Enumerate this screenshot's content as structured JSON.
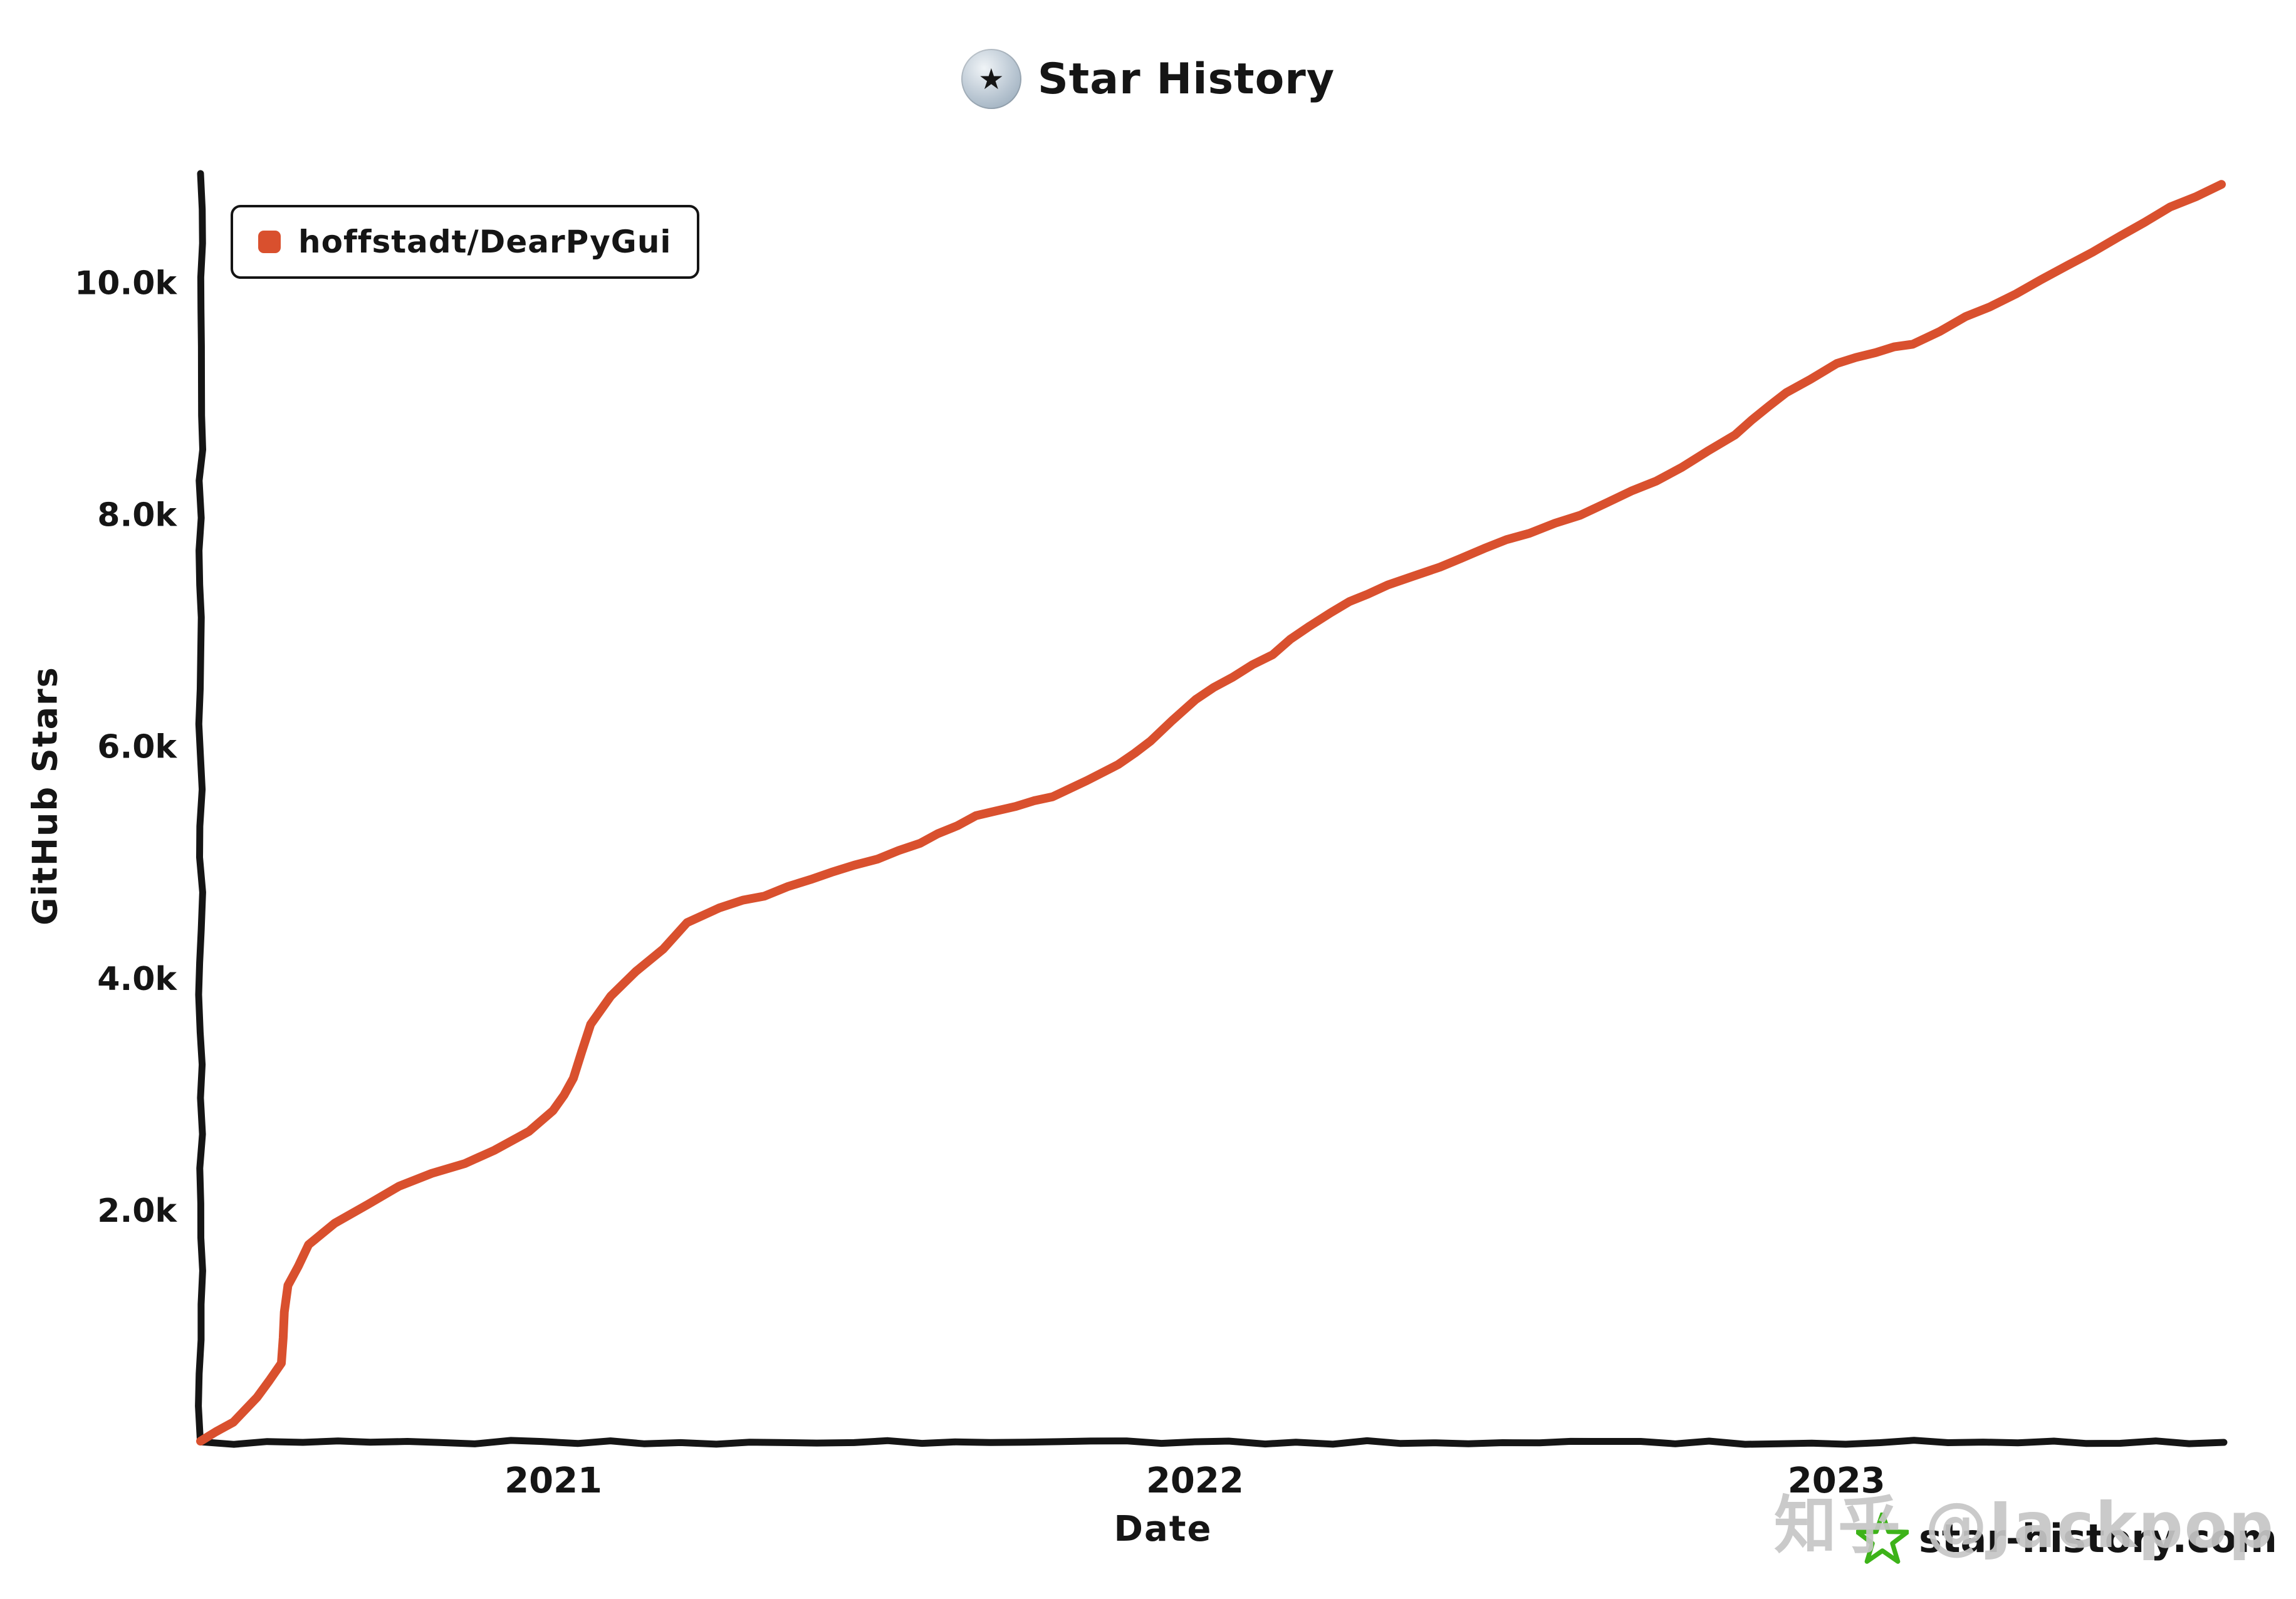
{
  "title": {
    "text": "Star History"
  },
  "brand": {
    "text": "star-history.com",
    "star_color": "#3db319"
  },
  "watermark": {
    "text": "知乎 @Jackpop"
  },
  "colors": {
    "axis": "#151515",
    "line": "#d9502e",
    "background": "#ffffff"
  },
  "chart_data": {
    "type": "line",
    "title": "Star History",
    "xlabel": "Date",
    "ylabel": "GitHub Stars",
    "grid": false,
    "legend_position": "top-left",
    "xlim": [
      2020.45,
      2023.6
    ],
    "ylim": [
      0,
      10900
    ],
    "x_ticks": [
      {
        "value": 2021,
        "label": "2021"
      },
      {
        "value": 2022,
        "label": "2022"
      },
      {
        "value": 2023,
        "label": "2023"
      }
    ],
    "y_ticks": [
      {
        "value": 2000,
        "label": "2.0k"
      },
      {
        "value": 4000,
        "label": "4.0k"
      },
      {
        "value": 6000,
        "label": "6.0k"
      },
      {
        "value": 8000,
        "label": "8.0k"
      },
      {
        "value": 10000,
        "label": "10.0k"
      }
    ],
    "series": [
      {
        "name": "hoffstadt/DearPyGui",
        "color": "#d9502e",
        "points": [
          [
            2020.45,
            10
          ],
          [
            2020.5,
            180
          ],
          [
            2020.54,
            400
          ],
          [
            2020.575,
            680
          ],
          [
            2020.585,
            1350
          ],
          [
            2020.62,
            1700
          ],
          [
            2020.66,
            1900
          ],
          [
            2020.71,
            2050
          ],
          [
            2020.76,
            2200
          ],
          [
            2020.81,
            2320
          ],
          [
            2020.86,
            2400
          ],
          [
            2020.91,
            2520
          ],
          [
            2020.96,
            2680
          ],
          [
            2021.0,
            2850
          ],
          [
            2021.03,
            3150
          ],
          [
            2021.06,
            3600
          ],
          [
            2021.09,
            3850
          ],
          [
            2021.13,
            4050
          ],
          [
            2021.17,
            4250
          ],
          [
            2021.21,
            4480
          ],
          [
            2021.26,
            4620
          ],
          [
            2021.33,
            4720
          ],
          [
            2021.4,
            4850
          ],
          [
            2021.47,
            4980
          ],
          [
            2021.54,
            5100
          ],
          [
            2021.6,
            5250
          ],
          [
            2021.66,
            5400
          ],
          [
            2021.72,
            5480
          ],
          [
            2021.78,
            5570
          ],
          [
            2021.83,
            5700
          ],
          [
            2021.88,
            5850
          ],
          [
            2021.93,
            6050
          ],
          [
            2022.0,
            6400
          ],
          [
            2022.06,
            6600
          ],
          [
            2022.12,
            6800
          ],
          [
            2022.18,
            7050
          ],
          [
            2022.24,
            7250
          ],
          [
            2022.3,
            7400
          ],
          [
            2022.38,
            7550
          ],
          [
            2022.45,
            7700
          ],
          [
            2022.52,
            7850
          ],
          [
            2022.6,
            8000
          ],
          [
            2022.68,
            8200
          ],
          [
            2022.76,
            8400
          ],
          [
            2022.84,
            8700
          ],
          [
            2022.92,
            9050
          ],
          [
            2023.0,
            9300
          ],
          [
            2023.06,
            9400
          ],
          [
            2023.12,
            9480
          ],
          [
            2023.2,
            9700
          ],
          [
            2023.28,
            9900
          ],
          [
            2023.36,
            10150
          ],
          [
            2023.44,
            10400
          ],
          [
            2023.52,
            10650
          ],
          [
            2023.6,
            10850
          ]
        ]
      }
    ]
  }
}
